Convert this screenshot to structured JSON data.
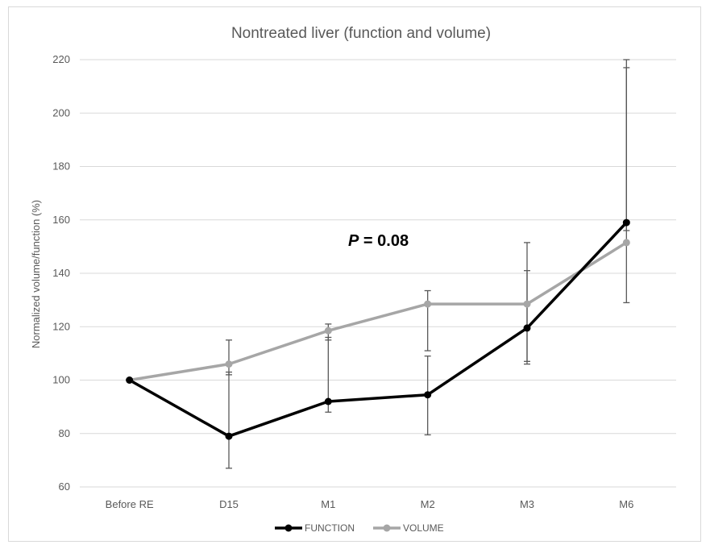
{
  "chart_data": {
    "type": "line",
    "title": "Nontreated liver (function and volume)",
    "xlabel": "",
    "ylabel": "Normalized volume/function (%)",
    "categories": [
      "Before RE",
      "D15",
      "M1",
      "M2",
      "M3",
      "M6"
    ],
    "ylim": [
      60,
      220
    ],
    "yticks": [
      60,
      80,
      100,
      120,
      140,
      160,
      180,
      200,
      220
    ],
    "grid": "horizontal",
    "legend_position": "bottom",
    "annotation": {
      "italic": "P",
      "text": " = 0.08"
    },
    "series": [
      {
        "name": "FUNCTION",
        "color": "#000000",
        "values": [
          100,
          79,
          92,
          94.5,
          119.5,
          159
        ],
        "error_low": [
          100,
          67,
          88,
          79.5,
          106,
          129
        ],
        "error_high": [
          100,
          103,
          116,
          109,
          141,
          217
        ]
      },
      {
        "name": "VOLUME",
        "color": "#a6a6a6",
        "values": [
          100,
          106,
          118.5,
          128.5,
          128.5,
          151.5
        ],
        "error_low": [
          100,
          102,
          115,
          111,
          107,
          156
        ],
        "error_high": [
          100,
          115,
          121,
          133.5,
          151.5,
          220
        ]
      }
    ]
  }
}
